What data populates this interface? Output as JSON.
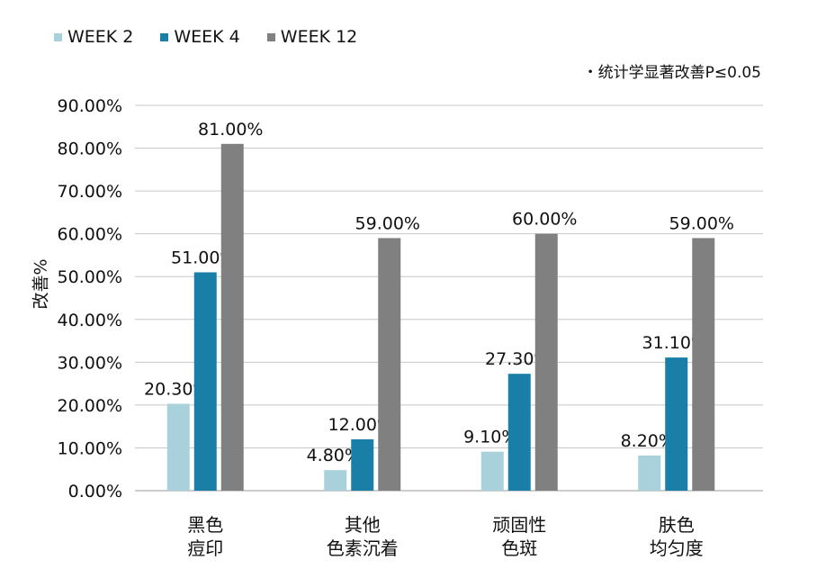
{
  "note": "・统计学显著改善P≤0.05",
  "colors": {
    "grid": "#c8c8c8",
    "axis": "#999999"
  },
  "chart_data": {
    "type": "bar",
    "ylabel": "改善%",
    "ylim": [
      0,
      90
    ],
    "yticks": [
      "0.00%",
      "10.00%",
      "20.00%",
      "30.00%",
      "40.00%",
      "50.00%",
      "60.00%",
      "70.00%",
      "80.00%",
      "90.00%"
    ],
    "grid": true,
    "legend_position": "top-left",
    "categories": [
      [
        "黑色",
        "痘印"
      ],
      [
        "其他",
        "色素沉着"
      ],
      [
        "顽固性",
        "色斑"
      ],
      [
        "肤色",
        "均匀度"
      ]
    ],
    "series": [
      {
        "name": "WEEK 2",
        "color": "#a8d1dc",
        "values": [
          20.3,
          4.8,
          9.1,
          8.2
        ],
        "labels": [
          "20.30%",
          "4.80%",
          "9.10%",
          "8.20%"
        ]
      },
      {
        "name": "WEEK 4",
        "color": "#1a7fa6",
        "values": [
          51.0,
          12.0,
          27.3,
          31.1
        ],
        "labels": [
          "51.00%",
          "12.00%",
          "27.30%",
          "31.10%"
        ]
      },
      {
        "name": "WEEK 12",
        "color": "#808080",
        "values": [
          81.0,
          59.0,
          60.0,
          59.0
        ],
        "labels": [
          "81.00%",
          "59.00%",
          "60.00%",
          "59.00%"
        ]
      }
    ]
  }
}
